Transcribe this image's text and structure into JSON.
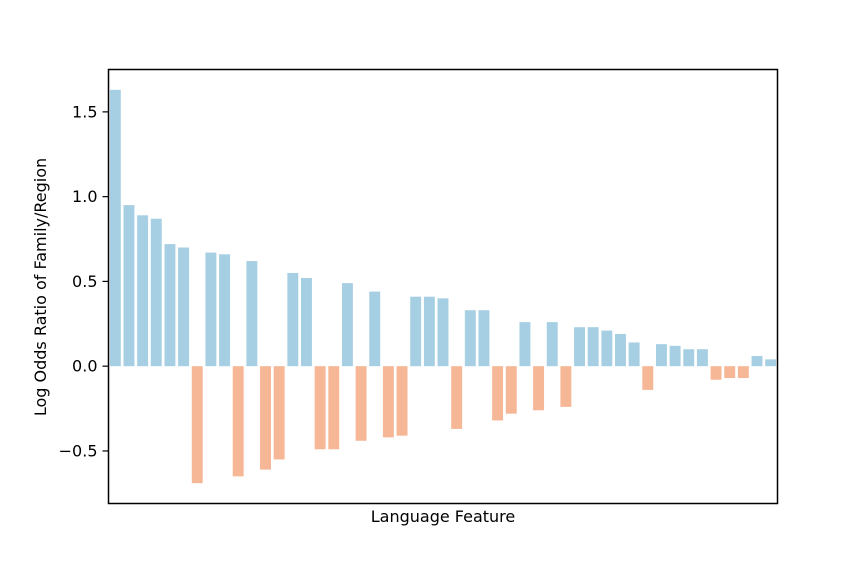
{
  "chart_data": {
    "type": "bar",
    "title": "",
    "xlabel": "Language Feature",
    "ylabel": "Log Odds Ratio of Family/Region",
    "ylim": [
      -0.81,
      1.75
    ],
    "yticks": [
      {
        "value": -0.5,
        "label": "−0.5"
      },
      {
        "value": 0.0,
        "label": "0.0"
      },
      {
        "value": 0.5,
        "label": "0.5"
      },
      {
        "value": 1.0,
        "label": "1.0"
      },
      {
        "value": 1.5,
        "label": "1.5"
      }
    ],
    "x_tick_labels_shown": false,
    "grid": false,
    "legend": "none",
    "colors": {
      "positive": "#a6cfe3",
      "negative": "#f6b796"
    },
    "values": [
      1.63,
      0.95,
      0.89,
      0.87,
      0.72,
      0.7,
      -0.69,
      0.67,
      0.66,
      -0.65,
      0.62,
      -0.61,
      -0.55,
      0.55,
      0.52,
      -0.49,
      -0.49,
      0.49,
      -0.44,
      0.44,
      -0.42,
      -0.41,
      0.41,
      0.41,
      0.4,
      -0.37,
      0.33,
      0.33,
      -0.32,
      -0.28,
      0.26,
      -0.26,
      0.26,
      -0.24,
      0.23,
      0.23,
      0.21,
      0.19,
      0.14,
      -0.14,
      0.13,
      0.12,
      0.1,
      0.1,
      -0.08,
      -0.07,
      -0.07,
      0.06,
      0.04
    ]
  }
}
